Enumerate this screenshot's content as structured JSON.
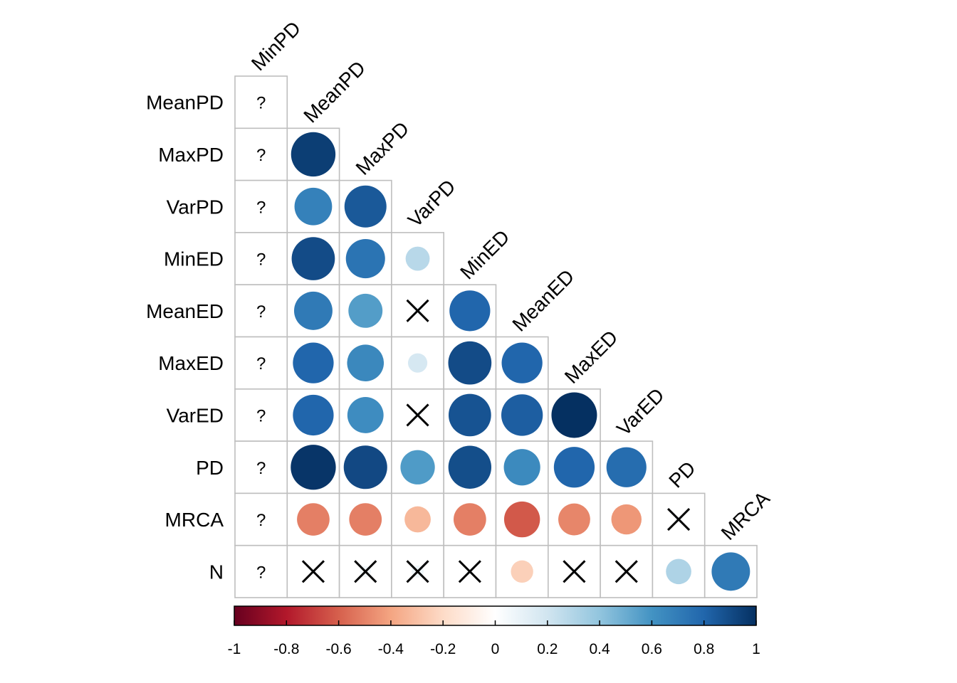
{
  "chart_data": {
    "type": "heatmap",
    "style": "correlation-matrix-lower-triangle",
    "variables": [
      "MinPD",
      "MeanPD",
      "MaxPD",
      "VarPD",
      "MinED",
      "MeanED",
      "MaxED",
      "VarED",
      "PD",
      "MRCA",
      "N"
    ],
    "row_labels": [
      "MeanPD",
      "MaxPD",
      "VarPD",
      "MinED",
      "MeanED",
      "MaxED",
      "VarED",
      "PD",
      "MRCA",
      "N"
    ],
    "column_labels": [
      "MinPD",
      "MeanPD",
      "MaxPD",
      "VarPD",
      "MinED",
      "MeanED",
      "MaxED",
      "VarED",
      "PD",
      "MRCA"
    ],
    "missing_symbol": "?",
    "insignificant_symbol": "×",
    "matrix": [
      [
        null
      ],
      [
        null,
        0.95
      ],
      [
        null,
        0.68,
        0.85
      ],
      [
        null,
        0.9,
        0.74,
        0.28
      ],
      [
        null,
        0.71,
        0.56,
        0.04,
        0.8
      ],
      [
        null,
        0.8,
        0.65,
        0.18,
        0.9,
        0.8
      ],
      [
        null,
        0.8,
        0.63,
        0.03,
        0.87,
        0.83,
        1.0
      ],
      [
        null,
        0.98,
        0.91,
        0.57,
        0.89,
        0.64,
        0.8,
        0.77
      ],
      [
        null,
        -0.51,
        -0.51,
        -0.33,
        -0.51,
        -0.62,
        -0.49,
        -0.44,
        0.03
      ],
      [
        null,
        0.02,
        0.06,
        0.07,
        0.02,
        -0.24,
        0.02,
        0.01,
        0.31,
        0.71
      ]
    ],
    "significant": [
      [
        true
      ],
      [
        true,
        true
      ],
      [
        true,
        true,
        true
      ],
      [
        true,
        true,
        true,
        true
      ],
      [
        true,
        true,
        true,
        false,
        true
      ],
      [
        true,
        true,
        true,
        true,
        true,
        true
      ],
      [
        true,
        true,
        true,
        false,
        true,
        true,
        true
      ],
      [
        true,
        true,
        true,
        true,
        true,
        true,
        true,
        true
      ],
      [
        true,
        true,
        true,
        true,
        true,
        true,
        true,
        true,
        false
      ],
      [
        true,
        false,
        false,
        false,
        false,
        true,
        false,
        false,
        true,
        true
      ]
    ],
    "colorbar": {
      "range": [
        -1,
        1
      ],
      "ticks": [
        "-1",
        "-0.8",
        "-0.6",
        "-0.4",
        "-0.2",
        "0",
        "0.2",
        "0.4",
        "0.6",
        "0.8",
        "1"
      ],
      "palette": [
        "#67001F",
        "#B2182B",
        "#D6604D",
        "#F4A582",
        "#FDDBC7",
        "#FFFFFF",
        "#D1E5F0",
        "#92C5DE",
        "#4393C3",
        "#2166AC",
        "#053061"
      ]
    }
  }
}
